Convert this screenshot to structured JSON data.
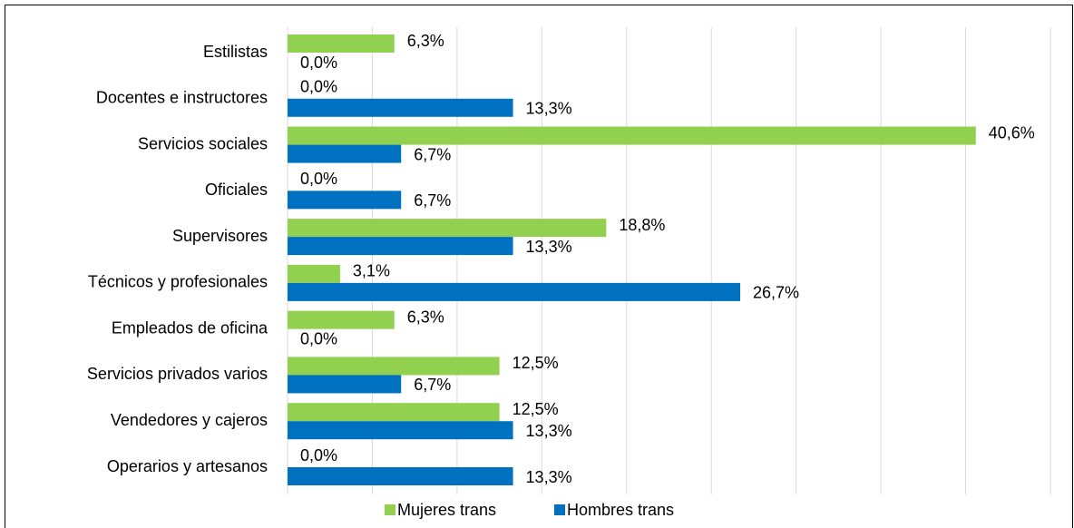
{
  "chart_data": {
    "type": "bar",
    "orientation": "horizontal",
    "categories": [
      "Estilistas",
      "Docentes e instructores",
      "Servicios sociales",
      "Oficiales ",
      "Supervisores",
      "Técnicos y profesionales",
      "Empleados de oficina",
      "Servicios privados varios",
      "Vendedores  y cajeros",
      "Operarios y artesanos"
    ],
    "series": [
      {
        "name": "Mujeres trans",
        "color": "#92d050",
        "values": [
          6.3,
          0.0,
          40.6,
          0.0,
          18.8,
          3.1,
          6.3,
          12.5,
          12.5,
          0.0
        ],
        "value_labels": [
          "6,3%",
          "0,0%",
          "40,6%",
          "0,0%",
          "18,8%",
          "3,1%",
          "6,3%",
          "12,5%",
          "12,5%",
          "0,0%"
        ]
      },
      {
        "name": "Hombres trans",
        "color": "#0070c0",
        "values": [
          0.0,
          13.3,
          6.7,
          6.7,
          13.3,
          26.7,
          0.0,
          6.7,
          13.3,
          13.3
        ],
        "value_labels": [
          "0,0%",
          "13,3%",
          "6,7%",
          "6,7%",
          "13,3%",
          "26,7%",
          "0,0%",
          "6,7%",
          "13,3%",
          "13,3%"
        ]
      }
    ],
    "xlim": [
      0,
      45
    ],
    "xticks": [
      0,
      5,
      10,
      15,
      20,
      25,
      30,
      35,
      40,
      45
    ],
    "grid": true,
    "legend": "bottom"
  }
}
